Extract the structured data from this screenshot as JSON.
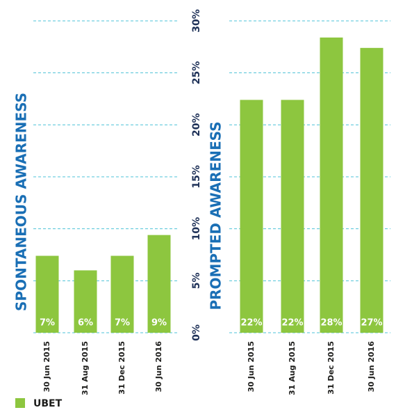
{
  "chart_data": [
    {
      "type": "bar",
      "title": "SPONTANEOUS AWARENESS",
      "categories": [
        "30 Jun 2015",
        "31 Aug 2015",
        "31 Dec 2015",
        "30 Jun 2016"
      ],
      "series": [
        {
          "name": "UBET",
          "color": "#8dc63f",
          "values": [
            7.4,
            6,
            7.4,
            9.4
          ],
          "value_labels": [
            "7%",
            "6%",
            "7%",
            "9%"
          ]
        }
      ],
      "ylim": [
        0,
        30
      ],
      "yticks": [
        {
          "value": 0,
          "label": "0%"
        },
        {
          "value": 5,
          "label": "5%"
        },
        {
          "value": 10,
          "label": "10%"
        },
        {
          "value": 15,
          "label": "15%"
        },
        {
          "value": 20,
          "label": "20%"
        },
        {
          "value": 25,
          "label": "25%"
        },
        {
          "value": 30,
          "label": "30%"
        }
      ],
      "grid": true,
      "legend": "bottom-left"
    },
    {
      "type": "bar",
      "title": "PROMPTED AWARENESS",
      "categories": [
        "30 Jun 2015",
        "31 Aug 2015",
        "31 Dec 2015",
        "30 Jun 2016"
      ],
      "series": [
        {
          "color": "#8dc63f",
          "values": [
            22.4,
            22.4,
            28.4,
            27.4
          ],
          "value_labels": [
            "22%",
            "22%",
            "28%",
            "27%"
          ]
        }
      ],
      "ylim": [
        0,
        30
      ]
    }
  ]
}
